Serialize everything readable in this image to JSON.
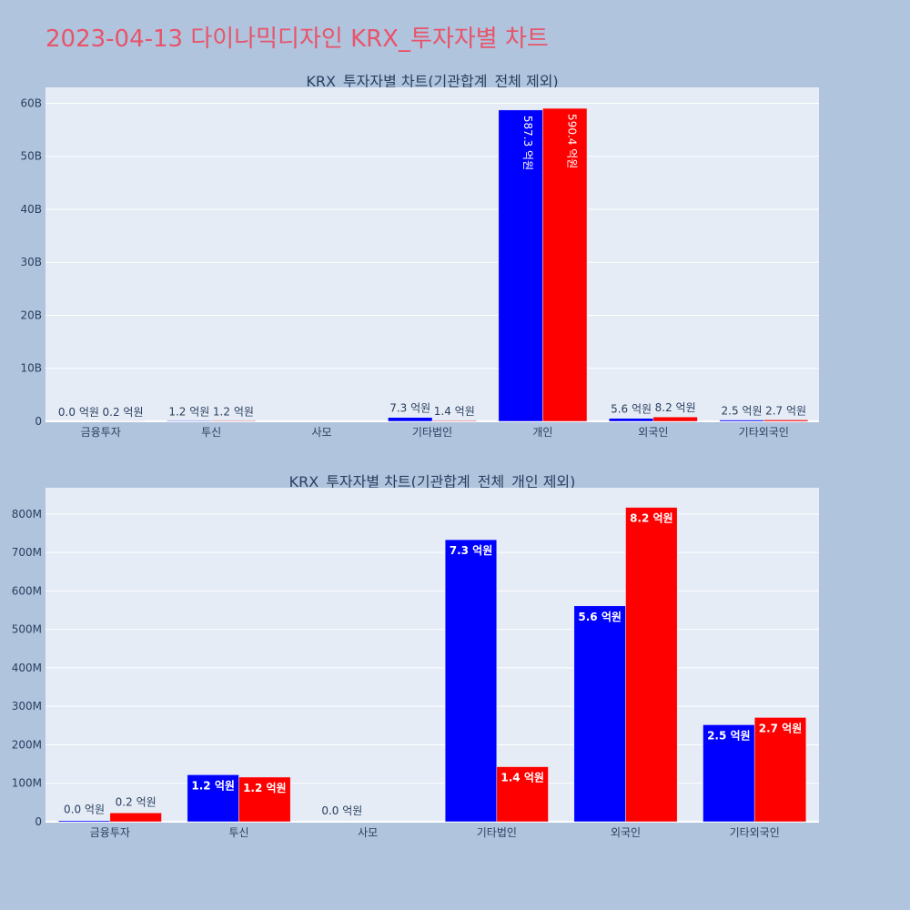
{
  "title": "2023-04-13 다이나믹디자인 KRX_투자자별 차트",
  "colors": {
    "series_a": "#0000ff",
    "series_b": "#ff0000",
    "plot_bg": "#e5ecf6",
    "page_bg": "#b0c4de"
  },
  "chart_data": [
    {
      "type": "bar",
      "title": "KRX_투자자별 차트(기관합계_전체 제외)",
      "categories": [
        "금융투자",
        "투신",
        "사모",
        "기타법인",
        "개인",
        "외국인",
        "기타외국인"
      ],
      "ylim": [
        0,
        63000000000
      ],
      "yticks": [
        0,
        10000000000,
        20000000000,
        30000000000,
        40000000000,
        50000000000,
        60000000000
      ],
      "ytick_labels": [
        "0",
        "10B",
        "20B",
        "30B",
        "40B",
        "50B",
        "60B"
      ],
      "series": [
        {
          "name": "series_a",
          "values": [
            0,
            120000000,
            0,
            730000000,
            58730000000,
            560000000,
            250000000
          ],
          "labels": [
            "0.0 억원",
            "1.2 억원",
            "",
            "7.3 억원",
            "587.3 억원",
            "5.6 억원",
            "2.5 억원"
          ]
        },
        {
          "name": "series_b",
          "values": [
            20000000,
            120000000,
            0,
            140000000,
            59040000000,
            820000000,
            270000000
          ],
          "labels": [
            "0.2 억원",
            "1.2 억원",
            "",
            "1.4 억원",
            "590.4 억원",
            "8.2 억원",
            "2.7 억원"
          ]
        }
      ]
    },
    {
      "type": "bar",
      "title": "KRX_투자자별 차트(기관합계_전체_개인 제외)",
      "categories": [
        "금융투자",
        "투신",
        "사모",
        "기타법인",
        "외국인",
        "기타외국인"
      ],
      "ylim": [
        0,
        868000000
      ],
      "yticks": [
        0,
        100000000,
        200000000,
        300000000,
        400000000,
        500000000,
        600000000,
        700000000,
        800000000
      ],
      "ytick_labels": [
        "0",
        "100M",
        "200M",
        "300M",
        "400M",
        "500M",
        "600M",
        "700M",
        "800M"
      ],
      "series": [
        {
          "name": "series_a",
          "values": [
            3000000,
            122000000,
            0,
            733000000,
            561000000,
            252000000
          ],
          "labels": [
            "0.0 억원",
            "1.2 억원",
            "0.0 억원",
            "7.3 억원",
            "5.6 억원",
            "2.5 억원"
          ]
        },
        {
          "name": "series_b",
          "values": [
            23000000,
            116000000,
            0,
            143000000,
            817000000,
            271000000
          ],
          "labels": [
            "0.2 억원",
            "1.2 억원",
            "",
            "1.4 억원",
            "8.2 억원",
            "2.7 억원"
          ]
        }
      ]
    }
  ]
}
